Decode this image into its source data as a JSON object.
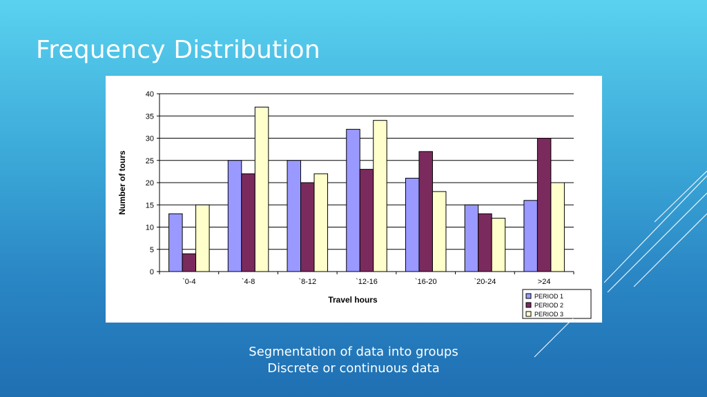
{
  "slide": {
    "title": "Frequency Distribution",
    "caption_line1": "Segmentation of data into groups",
    "caption_line2": "Discrete or continuous data"
  },
  "colors": {
    "period1": "#9999ff",
    "period2": "#7b2a5e",
    "period3": "#ffffcc",
    "background_top": "#5ad2ef",
    "background_bottom": "#1f6fb3"
  },
  "chart_data": {
    "type": "bar",
    "title": "",
    "xlabel": "Travel hours",
    "ylabel": "Number of tours",
    "ylim": [
      0,
      40
    ],
    "yticks": [
      0,
      5,
      10,
      15,
      20,
      25,
      30,
      35,
      40
    ],
    "grid": true,
    "legend_position": "bottom-right",
    "categories": [
      "`0-4",
      "`4-8",
      "`8-12",
      "`12-16",
      "`16-20",
      "`20-24",
      ">24"
    ],
    "series": [
      {
        "name": "PERIOD 1",
        "values": [
          13,
          25,
          25,
          32,
          21,
          15,
          16
        ]
      },
      {
        "name": "PERIOD 2",
        "values": [
          4,
          22,
          20,
          23,
          27,
          13,
          30
        ]
      },
      {
        "name": "PERIOD 3",
        "values": [
          15,
          37,
          22,
          34,
          18,
          12,
          20
        ]
      }
    ]
  }
}
